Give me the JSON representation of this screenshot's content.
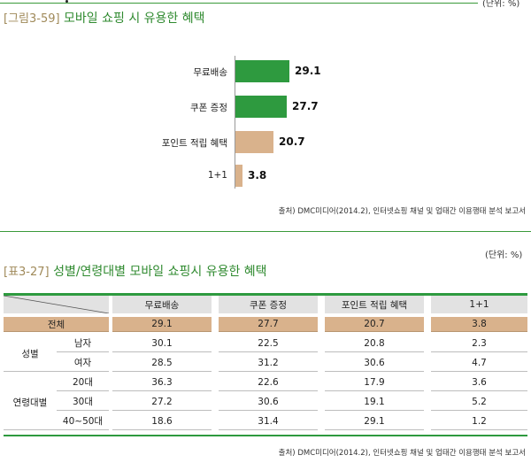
{
  "unit_top": "(단위: %)",
  "figure": {
    "tag": "[그림3-59]",
    "title": "모바일 쇼핑 시 유용한 혜택"
  },
  "chart_data": {
    "type": "bar",
    "orientation": "horizontal",
    "categories": [
      "무료배송",
      "쿠폰 증정",
      "포인트 적립 혜택",
      "1+1"
    ],
    "values": [
      29.1,
      27.7,
      20.7,
      3.8
    ],
    "colors": [
      "#2e9a3f",
      "#2e9a3f",
      "#d9b28c",
      "#d9b28c"
    ],
    "value_labels": [
      "29.1",
      "27.7",
      "20.7",
      "3.8"
    ],
    "title": "모바일 쇼핑 시 유용한 혜택",
    "xlim": [
      0,
      29.1
    ]
  },
  "source": "출처) DMC미디어(2014.2), 인터넷쇼핑 채널 및 업태간 이용행태 분석 보고서",
  "table": {
    "tag": "[표3-27]",
    "title": "성별/연령대별 모바일 쇼핑시 유용한 혜택",
    "unit": "(단위: %)",
    "columns": [
      "무료배송",
      "쿠폰 증정",
      "포인트 적립 혜택",
      "1+1"
    ],
    "total_label": "전체",
    "total_values": [
      "29.1",
      "27.7",
      "20.7",
      "3.8"
    ],
    "groups": [
      {
        "label": "성별",
        "rows": [
          {
            "label": "남자",
            "values": [
              "30.1",
              "22.5",
              "20.8",
              "2.3"
            ]
          },
          {
            "label": "여자",
            "values": [
              "28.5",
              "31.2",
              "30.6",
              "4.7"
            ]
          }
        ]
      },
      {
        "label": "연령대별",
        "rows": [
          {
            "label": "20대",
            "values": [
              "36.3",
              "22.6",
              "17.9",
              "3.6"
            ]
          },
          {
            "label": "30대",
            "values": [
              "27.2",
              "30.6",
              "19.1",
              "5.2"
            ]
          },
          {
            "label": "40~50대",
            "values": [
              "18.6",
              "31.4",
              "29.1",
              "1.2"
            ]
          }
        ]
      }
    ],
    "source": "출처) DMC미디어(2014.2), 인터넷쇼핑 채널 및 업태간 이용행태 분석 보고서"
  }
}
